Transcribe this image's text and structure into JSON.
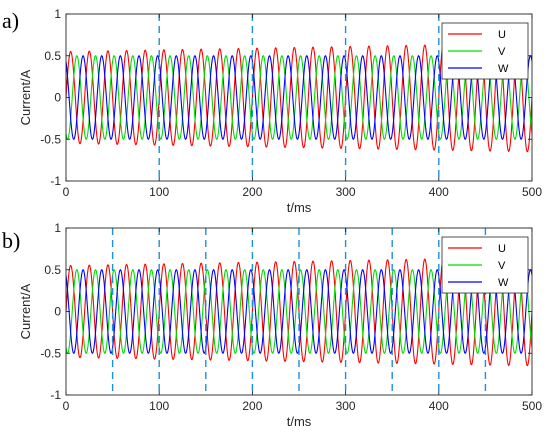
{
  "chart_data": [
    {
      "type": "line",
      "panel_label": "a)",
      "xlabel": "t/ms",
      "ylabel": "Current/A",
      "xlim": [
        0,
        500
      ],
      "ylim": [
        -1,
        1
      ],
      "x_ticks": [
        0,
        100,
        200,
        300,
        400,
        500
      ],
      "y_ticks": [
        -1,
        -0.5,
        0,
        0.5,
        1
      ],
      "x_tick_labels": [
        "0",
        "100",
        "200",
        "300",
        "400",
        "500"
      ],
      "y_tick_labels": [
        "-1",
        "-0.5",
        "0",
        "0.5",
        "1"
      ],
      "vlines_dashed": [
        100,
        200,
        300,
        400
      ],
      "grid": false,
      "legend_position": "top-right",
      "series": [
        {
          "name": "U",
          "color": "#ff0000",
          "amplitude": [
            0.55,
            0.65
          ],
          "frequency_hz": 50,
          "phase_deg": 0
        },
        {
          "name": "V",
          "color": "#00dd00",
          "amplitude": [
            0.5,
            0.5
          ],
          "frequency_hz": 50,
          "phase_deg": -120
        },
        {
          "name": "W",
          "color": "#0000ff",
          "amplitude": [
            0.5,
            0.5
          ],
          "frequency_hz": 50,
          "phase_deg": 120
        }
      ]
    },
    {
      "type": "line",
      "panel_label": "b)",
      "xlabel": "t/ms",
      "ylabel": "Current/A",
      "xlim": [
        0,
        500
      ],
      "ylim": [
        -1,
        1
      ],
      "x_ticks": [
        0,
        100,
        200,
        300,
        400,
        500
      ],
      "y_ticks": [
        -1,
        -0.5,
        0,
        0.5,
        1
      ],
      "x_tick_labels": [
        "0",
        "100",
        "200",
        "300",
        "400",
        "500"
      ],
      "y_tick_labels": [
        "-1",
        "-0.5",
        "0",
        "0.5",
        "1"
      ],
      "vlines_dashed": [
        50,
        100,
        150,
        200,
        250,
        300,
        350,
        400,
        450
      ],
      "grid": false,
      "legend_position": "top-right",
      "series": [
        {
          "name": "U",
          "color": "#ff0000",
          "amplitude": [
            0.55,
            0.65
          ],
          "frequency_hz": 50,
          "phase_deg": 0
        },
        {
          "name": "V",
          "color": "#00dd00",
          "amplitude": [
            0.5,
            0.5
          ],
          "frequency_hz": 50,
          "phase_deg": -120
        },
        {
          "name": "W",
          "color": "#0000ff",
          "amplitude": [
            0.5,
            0.5
          ],
          "frequency_hz": 50,
          "phase_deg": 120
        }
      ]
    }
  ]
}
